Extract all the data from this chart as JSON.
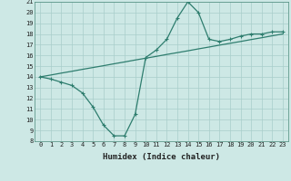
{
  "x": [
    0,
    1,
    2,
    3,
    4,
    5,
    6,
    7,
    8,
    9,
    10,
    11,
    12,
    13,
    14,
    15,
    16,
    17,
    18,
    19,
    20,
    21,
    22,
    23
  ],
  "y_main": [
    14.0,
    13.8,
    13.5,
    13.2,
    12.5,
    11.2,
    9.5,
    8.5,
    8.5,
    10.5,
    15.8,
    16.5,
    17.5,
    19.5,
    21.0,
    20.0,
    17.5,
    17.3,
    17.5,
    17.8,
    18.0,
    18.0,
    18.2,
    18.2
  ],
  "y_trend": [
    14.0,
    14.17,
    14.35,
    14.52,
    14.7,
    14.87,
    15.04,
    15.22,
    15.39,
    15.57,
    15.74,
    15.91,
    16.09,
    16.26,
    16.43,
    16.61,
    16.78,
    16.96,
    17.13,
    17.3,
    17.48,
    17.65,
    17.83,
    18.0
  ],
  "line_color": "#2e7d6e",
  "bg_color": "#cde8e5",
  "grid_color": "#a8ceca",
  "xlabel": "Humidex (Indice chaleur)",
  "xlim": [
    -0.5,
    23.5
  ],
  "ylim": [
    8,
    21
  ],
  "yticks": [
    8,
    9,
    10,
    11,
    12,
    13,
    14,
    15,
    16,
    17,
    18,
    19,
    20,
    21
  ],
  "xticks": [
    0,
    1,
    2,
    3,
    4,
    5,
    6,
    7,
    8,
    9,
    10,
    11,
    12,
    13,
    14,
    15,
    16,
    17,
    18,
    19,
    20,
    21,
    22,
    23
  ],
  "marker": "+",
  "marker_size": 3.5,
  "line_width": 0.9,
  "xlabel_fontsize": 6.5,
  "tick_fontsize": 5.0
}
